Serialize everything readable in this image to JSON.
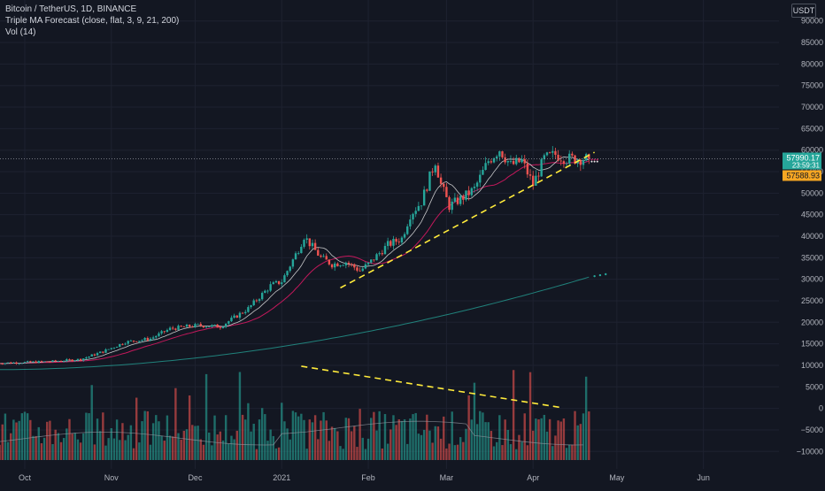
{
  "legend": {
    "symbol_line": "Bitcoin / TetherUS, 1D, BINANCE",
    "indicator_line": "Triple MA Forecast (close, flat, 3, 9, 21, 200)",
    "volume_line": "Vol (14)"
  },
  "currency_button": "USDT",
  "colors": {
    "background": "#131722",
    "up": "#26a69a",
    "down": "#ef5350",
    "ma_fast": "#e8e8e8",
    "ma_slow": "#c2185b",
    "ma_200": "#26a69a",
    "trendline": "#ffeb3b",
    "price_tag": "#26a69a",
    "forecast_tag": "#f5a623"
  },
  "chart_data": [
    {
      "type": "candlestick",
      "title": "Bitcoin / TetherUS, 1D, BINANCE",
      "x_labels": [
        "Oct",
        "Nov",
        "Dec",
        "2021",
        "Feb",
        "Mar",
        "Apr",
        "May",
        "Jun"
      ],
      "x_label_offsets_days": [
        0,
        31,
        61,
        92,
        123,
        151,
        182,
        212,
        243
      ],
      "y_ticks": [
        -10000,
        -5000,
        0,
        5000,
        10000,
        15000,
        20000,
        25000,
        30000,
        35000,
        40000,
        45000,
        50000,
        55000,
        60000,
        65000,
        70000,
        75000,
        80000,
        85000,
        90000
      ],
      "ylim": [
        -12000,
        92000
      ],
      "price_anchors": [
        [
          -10,
          10500
        ],
        [
          0,
          10700
        ],
        [
          10,
          10900
        ],
        [
          20,
          11400
        ],
        [
          28,
          13200
        ],
        [
          36,
          15400
        ],
        [
          45,
          16200
        ],
        [
          52,
          18500
        ],
        [
          58,
          19000
        ],
        [
          62,
          19300
        ],
        [
          70,
          19000
        ],
        [
          80,
          23200
        ],
        [
          88,
          28500
        ],
        [
          92,
          29500
        ],
        [
          98,
          37000
        ],
        [
          100,
          40000
        ],
        [
          106,
          35000
        ],
        [
          110,
          33500
        ],
        [
          115,
          34000
        ],
        [
          120,
          32000
        ],
        [
          123,
          33500
        ],
        [
          130,
          38000
        ],
        [
          135,
          39500
        ],
        [
          138,
          45000
        ],
        [
          142,
          48000
        ],
        [
          147,
          57500
        ],
        [
          149,
          52000
        ],
        [
          152,
          47000
        ],
        [
          158,
          49500
        ],
        [
          161,
          51000
        ],
        [
          166,
          57500
        ],
        [
          170,
          60200
        ],
        [
          174,
          56500
        ],
        [
          178,
          57500
        ],
        [
          182,
          52000
        ],
        [
          186,
          58000
        ],
        [
          190,
          59000
        ],
        [
          194,
          58000
        ],
        [
          199,
          58000
        ],
        [
          202,
          57990
        ]
      ],
      "ma_200_start_end": [
        9000,
        30500
      ],
      "last_price": "57990.17",
      "countdown": "23:59:31",
      "forecast_value": "57588.93",
      "last_price_value": 57990.17
    },
    {
      "type": "bar",
      "title": "Vol (14)",
      "note": "Volume histogram plotted on the shared price scale, base around -12000 and peaks near 12000."
    }
  ]
}
